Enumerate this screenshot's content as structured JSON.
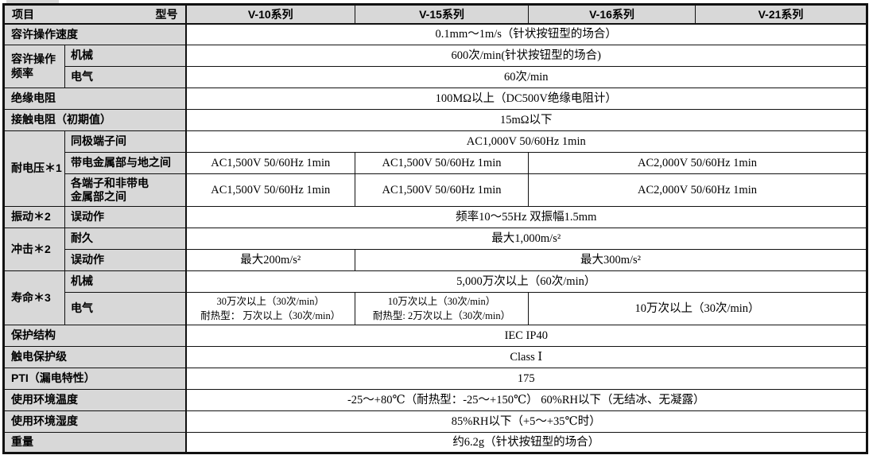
{
  "header": {
    "item": "项目",
    "model": "型号",
    "series": [
      "V-10系列",
      "V-15系列",
      "V-16系列",
      "V-21系列"
    ]
  },
  "rows": {
    "speed": {
      "label": "容许操作速度",
      "all": "0.1mm～1m/s（针状按钮型的场合）"
    },
    "freq": {
      "label": "容许操作频率",
      "mech_label": "机械",
      "mech": "600次/min(针状按钮型的场合)",
      "elec_label": "电气",
      "elec": "60次/min"
    },
    "insulation": {
      "label": "绝缘电阻",
      "all": "100MΩ以上（DC500V绝缘电阻计）"
    },
    "contact": {
      "label": "接触电阻（初期值）",
      "all": "15mΩ以下"
    },
    "dielectric": {
      "label": "耐电压＊1",
      "same_label": "同极端子间",
      "same_all": "AC1,000V 50/60Hz 1min",
      "ground_label": "带电金属部与地之间",
      "ground_v10": "AC1,500V 50/60Hz 1min",
      "ground_v15": "AC1,500V 50/60Hz 1min",
      "ground_v16_21": "AC2,000V 50/60Hz 1min",
      "noncurrent_label": "各端子和非带电\n金属部之间",
      "noncurrent_v10": "AC1,500V 50/60Hz 1min",
      "noncurrent_v15": "AC1,500V 50/60Hz 1min",
      "noncurrent_v16_21": "AC2,000V 50/60Hz 1min"
    },
    "vibration": {
      "label": "振动＊2",
      "malf_label": "误动作",
      "all": "频率10～55Hz  双振幅1.5mm"
    },
    "shock": {
      "label": "冲击＊2",
      "dur_label": "耐久",
      "dur_all": "最大1,000m/s²",
      "malf_label": "误动作",
      "malf_v10": "最大200m/s²",
      "malf_rest": "最大300m/s²"
    },
    "life": {
      "label": "寿命＊3",
      "mech_label": "机械",
      "mech_all": "5,000万次以上（60次/min）",
      "elec_label": "电气",
      "elec_v10": "30万次以上（30次/min）\n耐热型： 万次以上（30次/min）",
      "elec_v15": "10万次以上（30次/min）\n耐热型: 2万次以上（30次/min）",
      "elec_v16_21": "10万次以上（30次/min）"
    },
    "protection": {
      "label": "保护结构",
      "all": "IEC IP40"
    },
    "shock_class": {
      "label": "触电保护级",
      "all": "Class Ⅰ"
    },
    "pti": {
      "label": "PTI（漏电特性）",
      "all": "175"
    },
    "amb_temp": {
      "label": "使用环境温度",
      "all": "-25～+80℃（耐热型：-25～+150℃） 60%RH以下（无结冰、无凝露）"
    },
    "amb_hum": {
      "label": "使用环境湿度",
      "all": "85%RH以下（+5～+35℃时）"
    },
    "weight": {
      "label": "重量",
      "all": "约6.2g（针状按钮型的场合）"
    }
  }
}
